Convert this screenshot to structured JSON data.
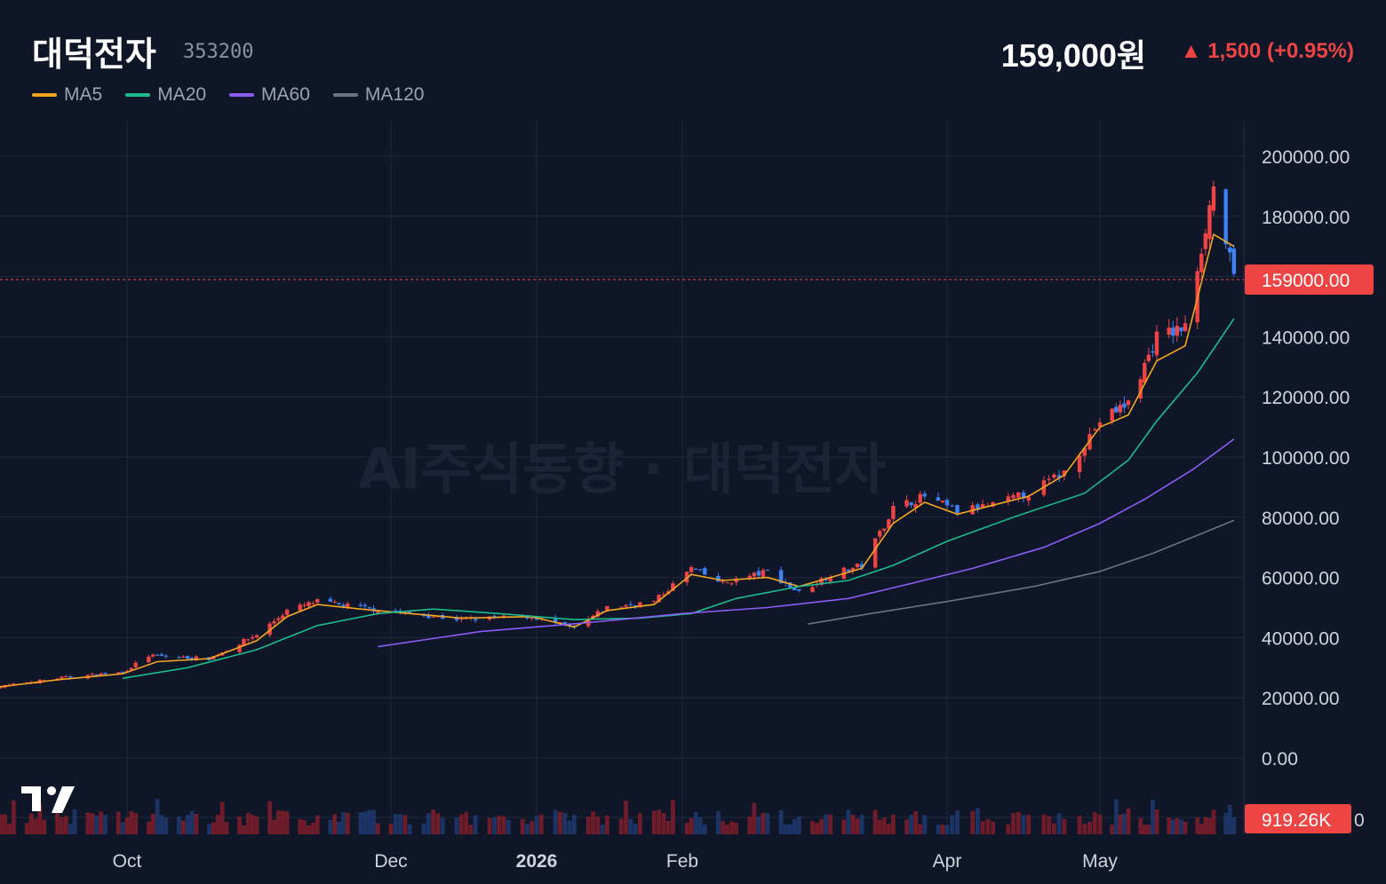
{
  "stock": {
    "name": "대덕전자",
    "code": "353200",
    "price": "159,000원",
    "change": "▲ 1,500 (+0.95%)"
  },
  "legend": [
    {
      "name": "MA5",
      "color": "#f5a623"
    },
    {
      "name": "MA20",
      "color": "#1abc8c"
    },
    {
      "name": "MA60",
      "color": "#8b5cf6"
    },
    {
      "name": "MA120",
      "color": "#6b7280"
    }
  ],
  "watermark": "AI주식동향 · 대덕전자",
  "colors": {
    "up": "#ef4444",
    "down": "#3b82f6",
    "background": "#0f1628"
  },
  "chart_data": {
    "type": "candlestick",
    "x_ticks": [
      "Oct",
      "Dec",
      "2026",
      "Feb",
      "Apr",
      "May"
    ],
    "y_ticks": [
      "200000.00",
      "180000.00",
      "140000.00",
      "120000.00",
      "100000.00",
      "80000.00",
      "60000.00",
      "40000.00",
      "20000.00",
      "0.00"
    ],
    "ylim": [
      0,
      200000
    ],
    "last_price": 159000,
    "last_price_label": "159000.00",
    "volume_last_label": "919.26K",
    "volume_axis_zero": "0",
    "close_path": [
      [
        "2025-09-01",
        23500
      ],
      [
        "2025-09-15",
        26500
      ],
      [
        "2025-09-30",
        28500
      ],
      [
        "2025-10-06",
        34000
      ],
      [
        "2025-10-20",
        33000
      ],
      [
        "2025-10-31",
        41000
      ],
      [
        "2025-11-07",
        49000
      ],
      [
        "2025-11-14",
        52000
      ],
      [
        "2025-11-24",
        50000
      ],
      [
        "2025-12-05",
        48000
      ],
      [
        "2025-12-16",
        46000
      ],
      [
        "2025-12-31",
        47000
      ],
      [
        "2026-01-09",
        43000
      ],
      [
        "2026-01-16",
        50000
      ],
      [
        "2026-01-26",
        52000
      ],
      [
        "2026-02-03",
        63000
      ],
      [
        "2026-02-10",
        58000
      ],
      [
        "2026-02-20",
        62000
      ],
      [
        "2026-02-27",
        55000
      ],
      [
        "2026-03-06",
        61000
      ],
      [
        "2026-03-13",
        64000
      ],
      [
        "2026-03-20",
        83000
      ],
      [
        "2026-03-27",
        87000
      ],
      [
        "2026-04-03",
        82000
      ],
      [
        "2026-04-10",
        84000
      ],
      [
        "2026-04-17",
        88000
      ],
      [
        "2026-04-24",
        95000
      ],
      [
        "2026-05-01",
        112000
      ],
      [
        "2026-05-08",
        118000
      ],
      [
        "2026-05-15",
        140000
      ],
      [
        "2026-05-22",
        143000
      ],
      [
        "2026-05-29",
        190000
      ],
      [
        "2026-06-03",
        159000
      ]
    ],
    "series": [
      {
        "name": "MA5",
        "color": "#f5a623",
        "start": "2025-09-01",
        "points": [
          [
            23500,
            "2025-09-01"
          ],
          [
            26000,
            "2025-09-15"
          ],
          [
            28000,
            "2025-09-30"
          ],
          [
            32000,
            "2025-10-08"
          ],
          [
            33000,
            "2025-10-20"
          ],
          [
            39000,
            "2025-10-31"
          ],
          [
            47000,
            "2025-11-07"
          ],
          [
            51000,
            "2025-11-14"
          ],
          [
            49500,
            "2025-11-24"
          ],
          [
            48000,
            "2025-12-05"
          ],
          [
            46500,
            "2025-12-16"
          ],
          [
            47000,
            "2025-12-31"
          ],
          [
            43500,
            "2026-01-09"
          ],
          [
            49000,
            "2026-01-16"
          ],
          [
            51000,
            "2026-01-26"
          ],
          [
            61000,
            "2026-02-03"
          ],
          [
            59000,
            "2026-02-10"
          ],
          [
            60000,
            "2026-02-20"
          ],
          [
            57000,
            "2026-02-27"
          ],
          [
            60000,
            "2026-03-06"
          ],
          [
            63000,
            "2026-03-13"
          ],
          [
            78000,
            "2026-03-20"
          ],
          [
            85000,
            "2026-03-27"
          ],
          [
            81000,
            "2026-04-03"
          ],
          [
            84000,
            "2026-04-10"
          ],
          [
            87000,
            "2026-04-17"
          ],
          [
            94000,
            "2026-04-24"
          ],
          [
            110000,
            "2026-05-01"
          ],
          [
            114000,
            "2026-05-08"
          ],
          [
            132000,
            "2026-05-15"
          ],
          [
            137000,
            "2026-05-22"
          ],
          [
            174000,
            "2026-05-29"
          ],
          [
            170000,
            "2026-06-03"
          ]
        ]
      },
      {
        "name": "MA20",
        "color": "#1abc8c",
        "points": [
          [
            26500,
            "2025-09-30"
          ],
          [
            30000,
            "2025-10-15"
          ],
          [
            36000,
            "2025-10-31"
          ],
          [
            44000,
            "2025-11-14"
          ],
          [
            48000,
            "2025-11-28"
          ],
          [
            49500,
            "2025-12-10"
          ],
          [
            48000,
            "2025-12-24"
          ],
          [
            46000,
            "2026-01-09"
          ],
          [
            46500,
            "2026-01-23"
          ],
          [
            48000,
            "2026-02-03"
          ],
          [
            53000,
            "2026-02-13"
          ],
          [
            57000,
            "2026-02-27"
          ],
          [
            59000,
            "2026-03-10"
          ],
          [
            64000,
            "2026-03-20"
          ],
          [
            72000,
            "2026-04-01"
          ],
          [
            80000,
            "2026-04-14"
          ],
          [
            88000,
            "2026-04-28"
          ],
          [
            99000,
            "2026-05-08"
          ],
          [
            112000,
            "2026-05-15"
          ],
          [
            128000,
            "2026-05-25"
          ],
          [
            146000,
            "2026-06-03"
          ]
        ]
      },
      {
        "name": "MA60",
        "color": "#8b5cf6",
        "points": [
          [
            37000,
            "2025-11-28"
          ],
          [
            42000,
            "2025-12-20"
          ],
          [
            45000,
            "2026-01-12"
          ],
          [
            48000,
            "2026-02-01"
          ],
          [
            50000,
            "2026-02-20"
          ],
          [
            53000,
            "2026-03-10"
          ],
          [
            58000,
            "2026-03-24"
          ],
          [
            63000,
            "2026-04-06"
          ],
          [
            70000,
            "2026-04-20"
          ],
          [
            78000,
            "2026-05-01"
          ],
          [
            86000,
            "2026-05-12"
          ],
          [
            96000,
            "2026-05-24"
          ],
          [
            106000,
            "2026-06-03"
          ]
        ]
      },
      {
        "name": "MA120",
        "color": "#6b7280",
        "points": [
          [
            44500,
            "2026-03-01"
          ],
          [
            48000,
            "2026-03-15"
          ],
          [
            52000,
            "2026-04-01"
          ],
          [
            57000,
            "2026-04-18"
          ],
          [
            62000,
            "2026-05-01"
          ],
          [
            68000,
            "2026-05-14"
          ],
          [
            74000,
            "2026-05-25"
          ],
          [
            79000,
            "2026-06-03"
          ]
        ]
      }
    ]
  }
}
